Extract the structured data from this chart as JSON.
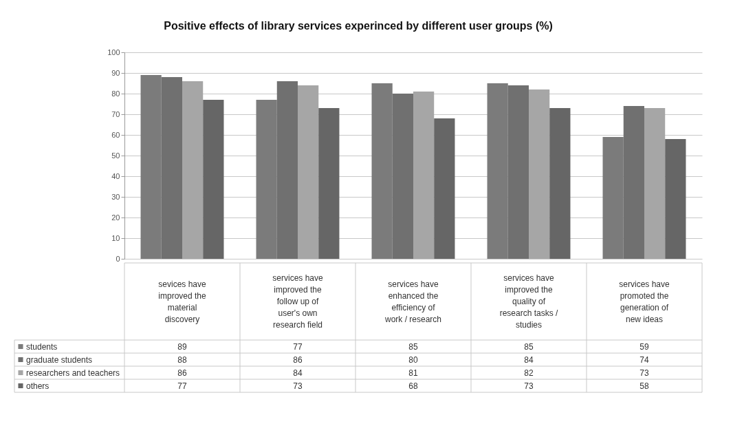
{
  "chart_data": {
    "type": "bar",
    "title": "Positive effects of library services experinced by different user groups (%)",
    "categories": [
      "sevices have improved the material discovery",
      "services have improved the follow up of user's own research field",
      "services have enhanced the efficiency of work / research",
      "services have improved the quality of research tasks / studies",
      "services have promoted the generation of new ideas"
    ],
    "series": [
      {
        "name": "students",
        "color": "#7b7b7b",
        "values": [
          89,
          77,
          85,
          85,
          59
        ]
      },
      {
        "name": "graduate students",
        "color": "#707070",
        "values": [
          88,
          86,
          80,
          84,
          74
        ]
      },
      {
        "name": "researchers and teachers",
        "color": "#a6a6a6",
        "values": [
          86,
          84,
          81,
          82,
          73
        ]
      },
      {
        "name": "others",
        "color": "#666666",
        "values": [
          77,
          73,
          68,
          73,
          58
        ]
      }
    ],
    "ylim": [
      0,
      100
    ],
    "yticks": [
      0,
      10,
      20,
      30,
      40,
      50,
      60,
      70,
      80,
      90,
      100
    ],
    "grid": "y",
    "legend": "bottom",
    "data_labels": true
  }
}
